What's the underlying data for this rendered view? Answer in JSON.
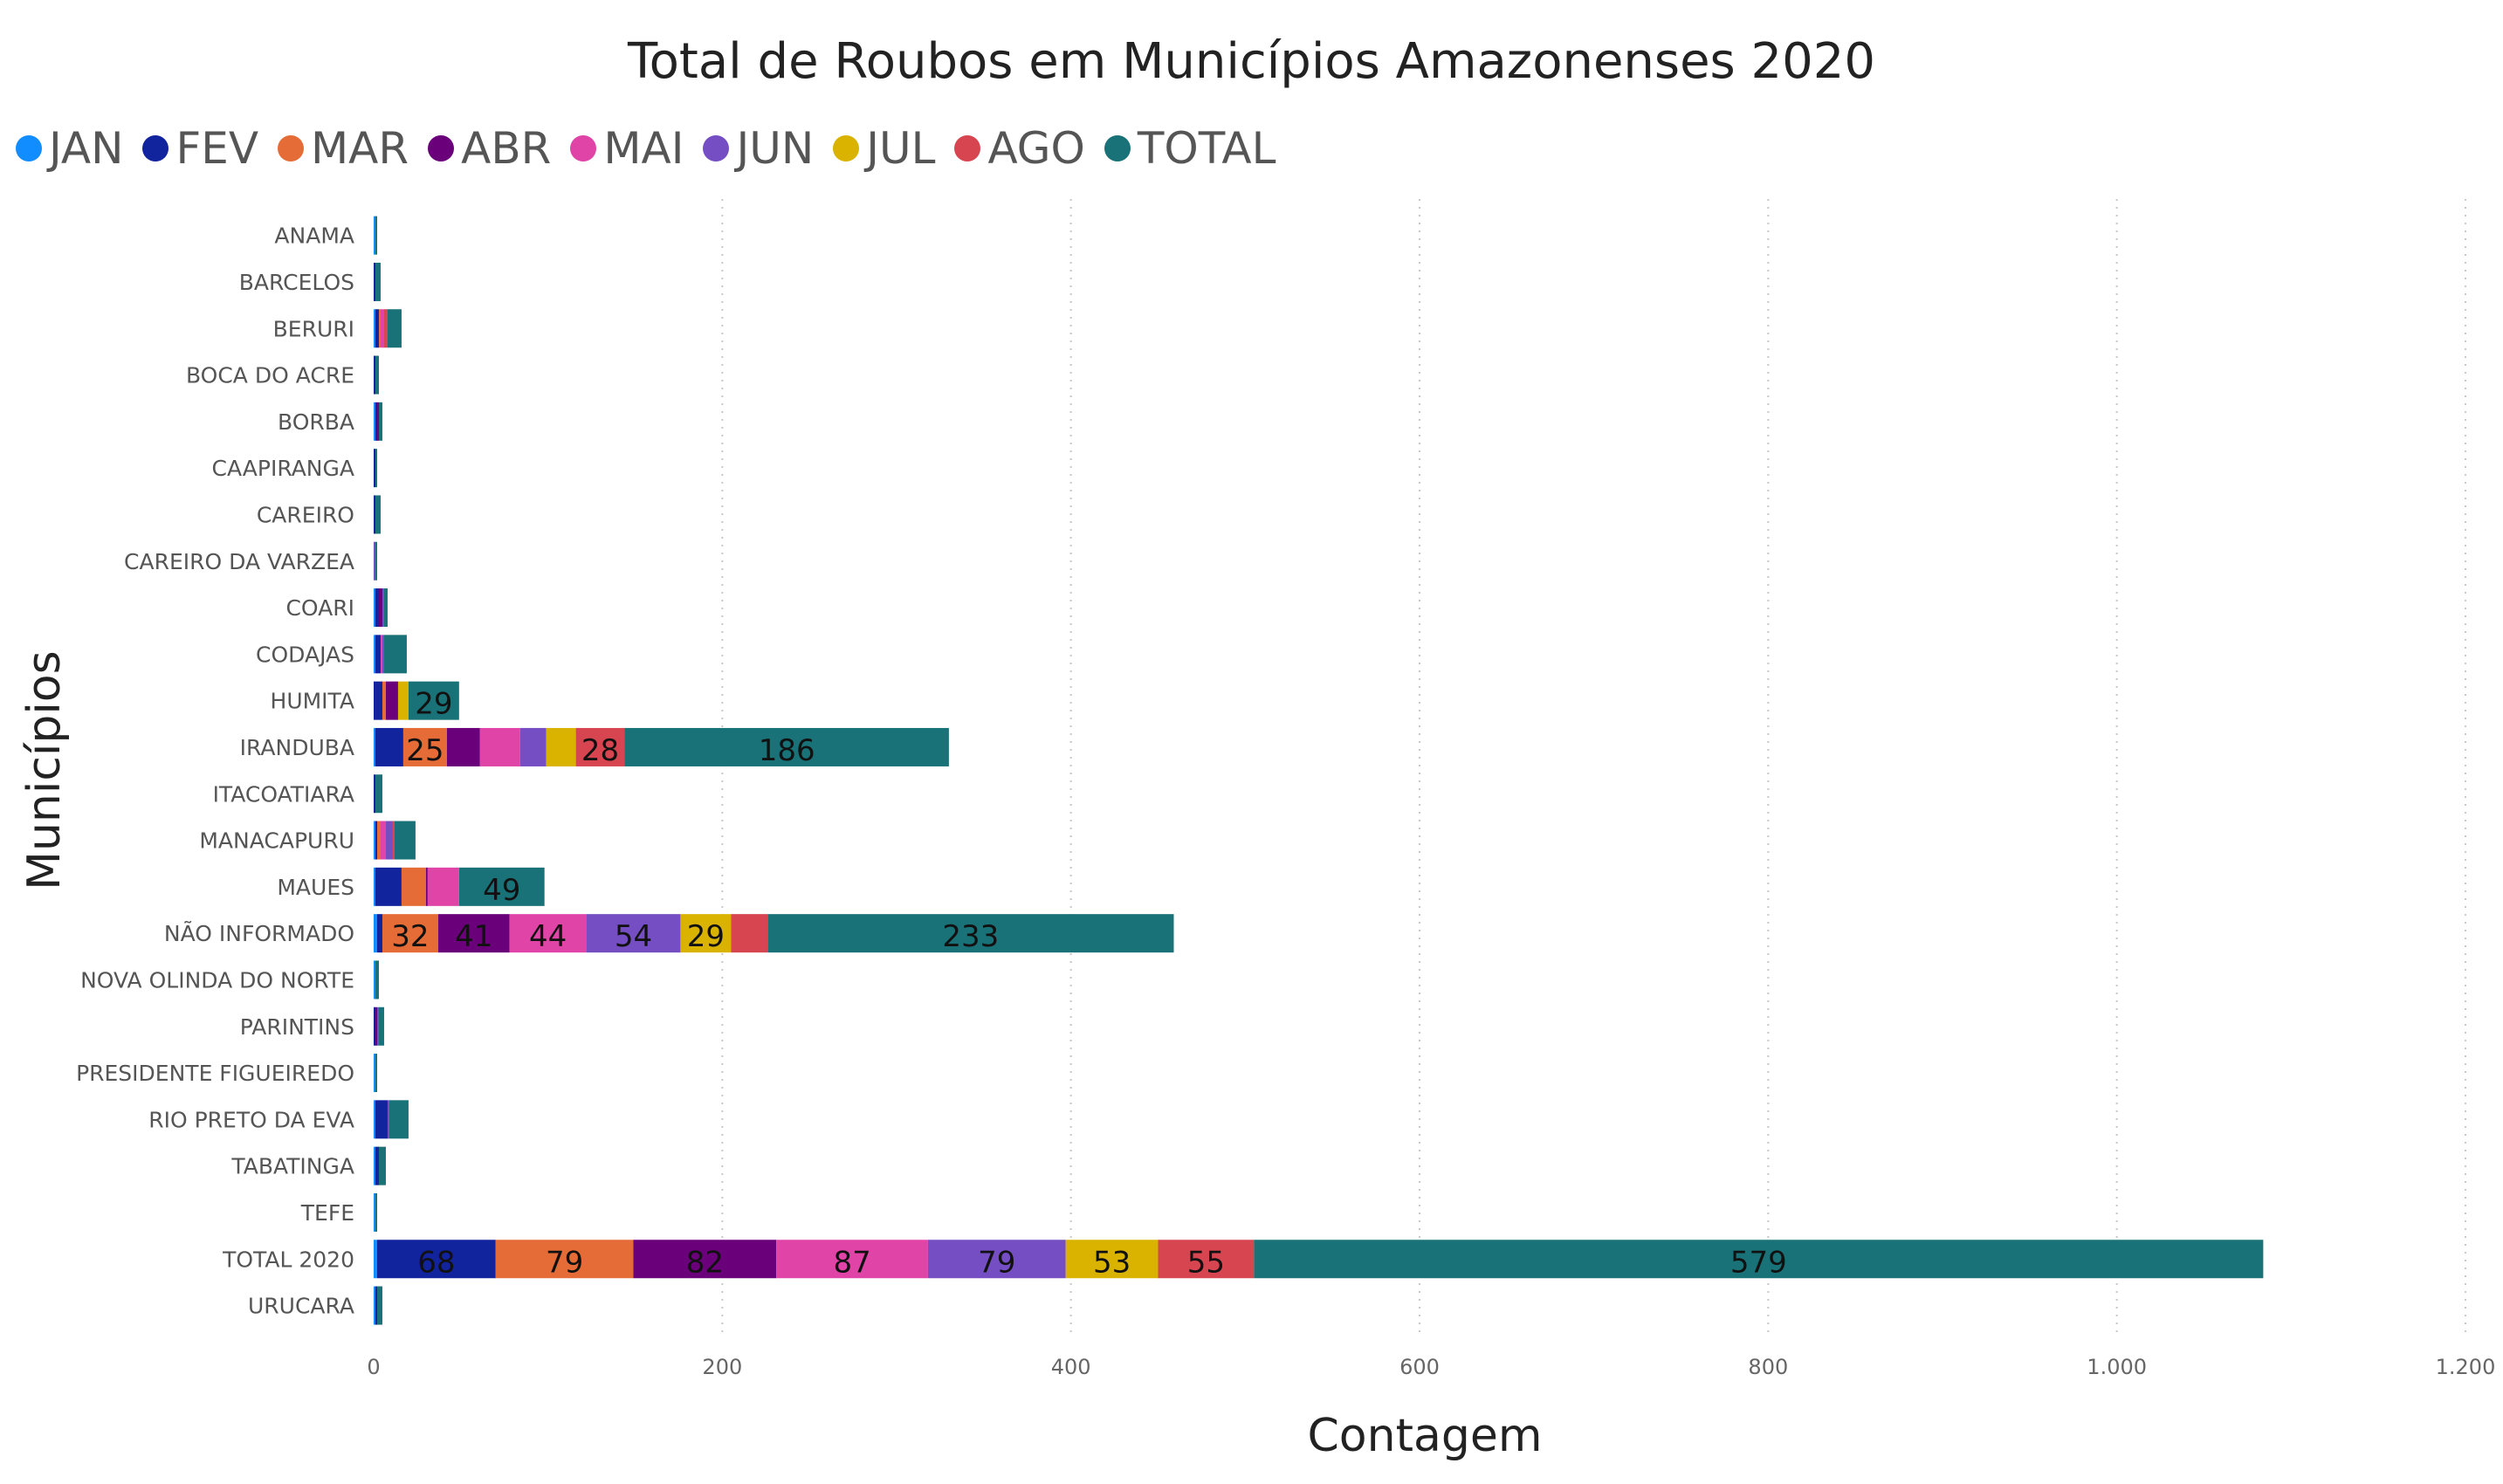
{
  "chart_data": {
    "type": "bar",
    "orientation": "horizontal",
    "stacked": true,
    "title": "Total de Roubos em Municípios Amazonenses 2020",
    "xlabel": "Contagem",
    "ylabel": "Municípios",
    "xlim": [
      0,
      1200
    ],
    "x_ticks": [
      "0",
      "200",
      "400",
      "600",
      "800",
      "1.000",
      "1.200"
    ],
    "x_tick_values": [
      0,
      200,
      400,
      600,
      800,
      1000,
      1200
    ],
    "grid": "vertical dotted",
    "legend_position": "top-left",
    "categories": [
      "ANAMA",
      "BARCELOS",
      "BERURI",
      "BOCA DO ACRE",
      "BORBA",
      "CAAPIRANGA",
      "CAREIRO",
      "CAREIRO DA VARZEA",
      "COARI",
      "CODAJAS",
      "HUMITA",
      "IRANDUBA",
      "ITACOATIARA",
      "MANACAPURU",
      "MAUES",
      "NÃO INFORMADO",
      "NOVA OLINDA DO NORTE",
      "PARINTINS",
      "PRESIDENTE FIGUEIREDO",
      "RIO PRETO DA EVA",
      "TABATINGA",
      "TEFE",
      "TOTAL 2020",
      "URUCARA"
    ],
    "series": [
      {
        "name": "JAN",
        "color": "#118DFF",
        "values": [
          1,
          0,
          1,
          0,
          1,
          0,
          0,
          0,
          1,
          1,
          0,
          1,
          0,
          1,
          1,
          2,
          1,
          0,
          1,
          1,
          1,
          1,
          2,
          1
        ]
      },
      {
        "name": "FEV",
        "color": "#12239E",
        "values": [
          0,
          1,
          2,
          1,
          1,
          1,
          1,
          0,
          2,
          3,
          5,
          16,
          1,
          1,
          15,
          3,
          0,
          1,
          0,
          7,
          2,
          0,
          68,
          1
        ]
      },
      {
        "name": "MAR",
        "color": "#E66C37",
        "values": [
          0,
          0,
          1,
          0,
          0,
          0,
          0,
          0,
          0,
          0,
          2,
          25,
          0,
          2,
          14,
          32,
          0,
          0,
          0,
          0,
          0,
          0,
          79,
          0
        ]
      },
      {
        "name": "ABR",
        "color": "#6B007B",
        "values": [
          0,
          0,
          0,
          0,
          1,
          0,
          0,
          0,
          2,
          0,
          7,
          19,
          0,
          0,
          1,
          41,
          0,
          1,
          0,
          0,
          0,
          0,
          82,
          0
        ]
      },
      {
        "name": "MAI",
        "color": "#E044A7",
        "values": [
          0,
          0,
          2,
          0,
          0,
          0,
          0,
          0,
          0,
          1,
          0,
          23,
          0,
          3,
          18,
          44,
          0,
          0,
          0,
          0,
          0,
          0,
          87,
          0
        ]
      },
      {
        "name": "JUN",
        "color": "#744EC2",
        "values": [
          0,
          0,
          0,
          0,
          0,
          0,
          0,
          1,
          1,
          1,
          0,
          15,
          0,
          4,
          0,
          54,
          0,
          1,
          0,
          1,
          0,
          0,
          79,
          0
        ]
      },
      {
        "name": "JUL",
        "color": "#D9B300",
        "values": [
          0,
          0,
          0,
          0,
          0,
          0,
          0,
          0,
          0,
          0,
          6,
          17,
          0,
          0,
          0,
          29,
          0,
          0,
          0,
          0,
          0,
          0,
          53,
          0
        ]
      },
      {
        "name": "AGO",
        "color": "#D64550",
        "values": [
          0,
          0,
          2,
          0,
          0,
          0,
          0,
          0,
          0,
          0,
          0,
          28,
          0,
          1,
          0,
          21,
          0,
          0,
          0,
          0,
          0,
          0,
          55,
          0
        ]
      },
      {
        "name": "TOTAL",
        "color": "#197278",
        "values": [
          1,
          3,
          8,
          2,
          2,
          1,
          3,
          1,
          2,
          13,
          29,
          186,
          4,
          12,
          49,
          233,
          2,
          3,
          1,
          11,
          4,
          1,
          579,
          3
        ]
      }
    ],
    "data_labels": [
      {
        "category": "HUMITA",
        "series": "TOTAL",
        "text": "29"
      },
      {
        "category": "IRANDUBA",
        "series": "MAR",
        "text": "25"
      },
      {
        "category": "IRANDUBA",
        "series": "AGO",
        "text": "28"
      },
      {
        "category": "IRANDUBA",
        "series": "TOTAL",
        "text": "186"
      },
      {
        "category": "MAUES",
        "series": "TOTAL",
        "text": "49"
      },
      {
        "category": "NÃO INFORMADO",
        "series": "MAR",
        "text": "32"
      },
      {
        "category": "NÃO INFORMADO",
        "series": "ABR",
        "text": "41"
      },
      {
        "category": "NÃO INFORMADO",
        "series": "MAI",
        "text": "44"
      },
      {
        "category": "NÃO INFORMADO",
        "series": "JUN",
        "text": "54"
      },
      {
        "category": "NÃO INFORMADO",
        "series": "JUL",
        "text": "29"
      },
      {
        "category": "NÃO INFORMADO",
        "series": "TOTAL",
        "text": "233"
      },
      {
        "category": "TOTAL 2020",
        "series": "FEV",
        "text": "68"
      },
      {
        "category": "TOTAL 2020",
        "series": "MAR",
        "text": "79"
      },
      {
        "category": "TOTAL 2020",
        "series": "ABR",
        "text": "82"
      },
      {
        "category": "TOTAL 2020",
        "series": "MAI",
        "text": "87"
      },
      {
        "category": "TOTAL 2020",
        "series": "JUN",
        "text": "79"
      },
      {
        "category": "TOTAL 2020",
        "series": "JUL",
        "text": "53"
      },
      {
        "category": "TOTAL 2020",
        "series": "AGO",
        "text": "55"
      },
      {
        "category": "TOTAL 2020",
        "series": "TOTAL",
        "text": "579"
      }
    ]
  }
}
